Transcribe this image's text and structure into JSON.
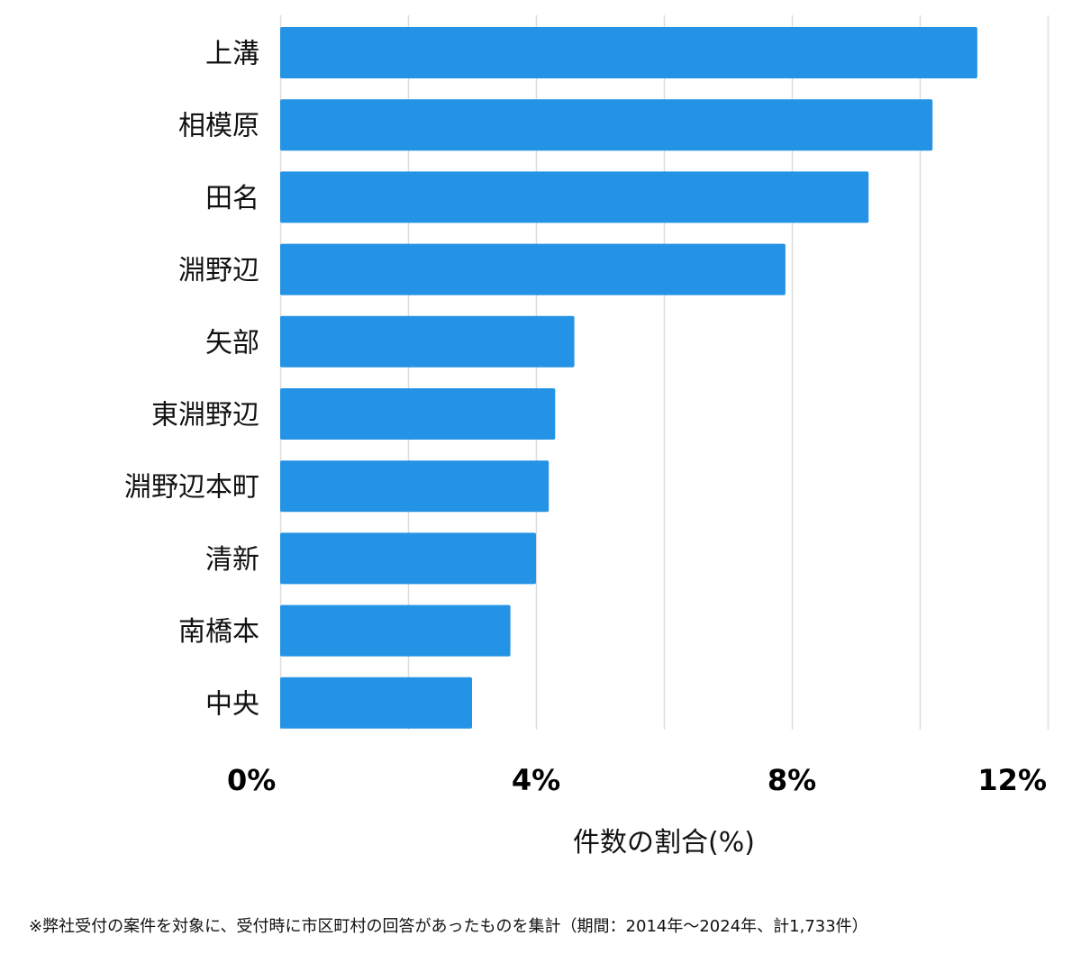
{
  "chart_data": {
    "type": "bar",
    "orientation": "horizontal",
    "categories": [
      "上溝",
      "相模原",
      "田名",
      "淵野辺",
      "矢部",
      "東淵野辺",
      "淵野辺本町",
      "清新",
      "南橋本",
      "中央"
    ],
    "values": [
      10.9,
      10.2,
      9.2,
      7.9,
      4.6,
      4.3,
      4.2,
      4.0,
      3.6,
      3.0
    ],
    "xlim": [
      0,
      12
    ],
    "xticks": [
      0,
      4,
      8,
      12
    ],
    "xtick_labels": [
      "0%",
      "4%",
      "8%",
      "12%"
    ],
    "xlabel": "件数の割合(%)",
    "grid": true,
    "bar_color": "#2593e5",
    "grid_color": "#dddddd"
  },
  "footnote": "※弊社受付の案件を対象に、受付時に市区町村の回答があったものを集計（期間：2014年～2024年、計1,733件）"
}
